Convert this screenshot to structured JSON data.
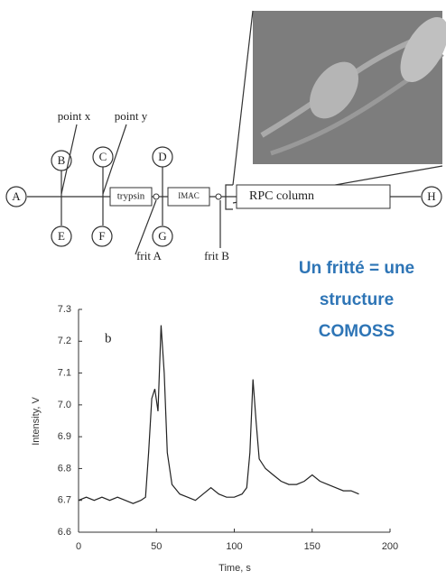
{
  "diagram": {
    "nodes": [
      "A",
      "B",
      "C",
      "D",
      "E",
      "F",
      "G",
      "H"
    ],
    "boxes": [
      "trypsin",
      "IMAC",
      "RPC column"
    ],
    "labels": [
      "point x",
      "point y",
      "frit A",
      "frit B"
    ]
  },
  "note": [
    "Un fritté = une",
    "structure",
    "COMOSS"
  ],
  "chart_data": {
    "type": "line",
    "panel_label": "b",
    "x_label": "Time, s",
    "y_label": "Intensity, V",
    "x": [
      0,
      5,
      10,
      15,
      20,
      25,
      30,
      35,
      40,
      43,
      45,
      47,
      49,
      51,
      53,
      55,
      57,
      60,
      65,
      70,
      75,
      80,
      85,
      90,
      95,
      100,
      105,
      108,
      110,
      112,
      114,
      116,
      120,
      125,
      130,
      135,
      140,
      145,
      150,
      155,
      160,
      165,
      170,
      175,
      180
    ],
    "series": [
      {
        "color": "#222222",
        "values": [
          6.7,
          6.71,
          6.7,
          6.71,
          6.7,
          6.71,
          6.7,
          6.69,
          6.7,
          6.71,
          6.85,
          7.02,
          7.05,
          6.98,
          7.25,
          7.1,
          6.85,
          6.75,
          6.72,
          6.71,
          6.7,
          6.72,
          6.74,
          6.72,
          6.71,
          6.71,
          6.72,
          6.74,
          6.85,
          7.08,
          6.95,
          6.83,
          6.8,
          6.78,
          6.76,
          6.75,
          6.75,
          6.76,
          6.78,
          6.76,
          6.75,
          6.74,
          6.73,
          6.73,
          6.72
        ]
      }
    ],
    "xlim": [
      0,
      200
    ],
    "xticks": [
      0,
      50,
      100,
      150,
      200
    ],
    "ylim": [
      6.6,
      7.3
    ],
    "yticks": [
      6.6,
      6.7,
      6.8,
      6.9,
      {
        "value": 7,
        "label": "7.0"
      },
      7.1,
      7.2,
      7.3
    ],
    "grid": false
  }
}
